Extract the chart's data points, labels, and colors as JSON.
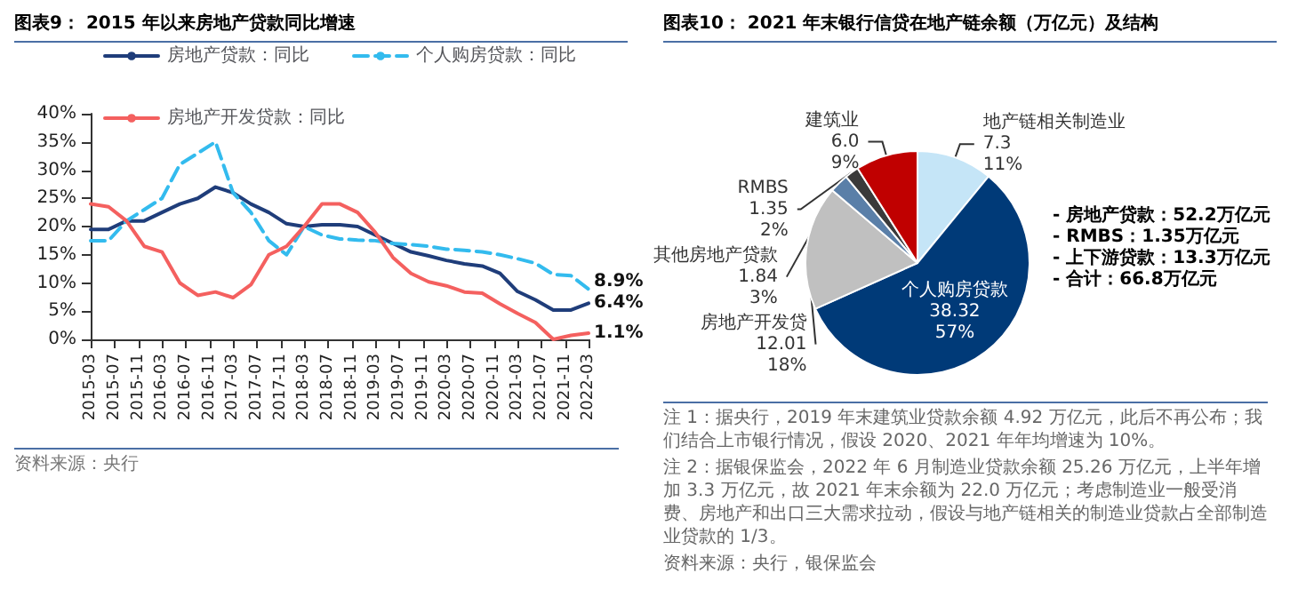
{
  "chart_data": [
    {
      "type": "line",
      "title": "图表9： 2015 年以来房地产贷款同比增速",
      "x": [
        "2015-03",
        "2015-06",
        "2015-09",
        "2015-12",
        "2016-03",
        "2016-06",
        "2016-09",
        "2016-12",
        "2017-03",
        "2017-06",
        "2017-09",
        "2017-12",
        "2018-03",
        "2018-06",
        "2018-09",
        "2018-12",
        "2019-03",
        "2019-06",
        "2019-09",
        "2019-12",
        "2020-03",
        "2020-06",
        "2020-09",
        "2020-12",
        "2021-03",
        "2021-06",
        "2021-09",
        "2021-12",
        "2022-03"
      ],
      "series": [
        {
          "name": "房地产贷款：同比",
          "color": "#1f3d7a",
          "values": [
            19.5,
            19.5,
            21,
            21,
            22.5,
            24,
            25,
            27,
            26,
            24,
            22.5,
            20.5,
            20,
            20.3,
            20.3,
            20,
            18.5,
            17,
            15.5,
            14.8,
            14,
            13.4,
            13,
            11.7,
            8.5,
            7,
            5.2,
            5.2,
            6.4
          ]
        },
        {
          "name": "个人购房贷款：同比",
          "color": "#33bbee",
          "line_style": "dashed",
          "values": [
            17.5,
            17.5,
            21,
            23,
            25,
            31,
            33,
            35,
            26,
            22.5,
            17.5,
            15,
            20,
            18.5,
            17.8,
            17.6,
            17.5,
            17,
            16.8,
            16.5,
            16,
            15.8,
            15.5,
            15,
            14.3,
            13.5,
            11.5,
            11.3,
            8.9
          ]
        },
        {
          "name": "房地产开发贷款：同比",
          "color": "#f4605f",
          "values": [
            24,
            23.5,
            21,
            16.5,
            15.5,
            10,
            7.8,
            8.4,
            7.4,
            9.7,
            15,
            16.5,
            20,
            24,
            24,
            22.5,
            19,
            14.5,
            11.7,
            10.2,
            9.5,
            8.4,
            8.2,
            6.3,
            4.6,
            3,
            0,
            0.7,
            1.1
          ]
        }
      ],
      "xlim": [
        "2015-03",
        "2022-03"
      ],
      "xticks": [
        "2015-03",
        "2015-07",
        "2015-11",
        "2016-03",
        "2016-07",
        "2016-11",
        "2017-03",
        "2017-07",
        "2017-11",
        "2018-03",
        "2018-07",
        "2018-11",
        "2019-03",
        "2019-07",
        "2019-11",
        "2020-03",
        "2020-07",
        "2020-11",
        "2021-03",
        "2021-07",
        "2021-11",
        "2022-03"
      ],
      "ylim": [
        0,
        40
      ],
      "yticks": [
        {
          "value": 0,
          "label": "0%"
        },
        {
          "value": 5,
          "label": "5%"
        },
        {
          "value": 10,
          "label": "10%"
        },
        {
          "value": 15,
          "label": "15%"
        },
        {
          "value": 20,
          "label": "20%"
        },
        {
          "value": 25,
          "label": "25%"
        },
        {
          "value": 30,
          "label": "30%"
        },
        {
          "value": 35,
          "label": "35%"
        },
        {
          "value": 40,
          "label": "40%"
        }
      ],
      "legend": "top left",
      "marker": "none",
      "line_style": "solid",
      "grid": false,
      "annotations": [
        {
          "text": "8.9%",
          "x": "2022-03",
          "y": 8.9
        },
        {
          "text": "6.4%",
          "x": "2022-03",
          "y": 6.4
        },
        {
          "text": "1.1%",
          "x": "2022-03",
          "y": 1.1
        },
        "资料来源：央行"
      ]
    },
    {
      "type": "pie",
      "title": "图表10： 2021 年末银行信贷在地产链余额（万亿元）及结构",
      "categories": [
        "地产链相关制造业",
        "个人购房贷款",
        "房地产开发贷",
        "其他房地产贷款",
        "RMBS",
        "建筑业"
      ],
      "values": [
        7.3,
        38.32,
        12.01,
        1.84,
        1.35,
        6.0
      ],
      "colors": [
        "#c5e5f7",
        "#003a78",
        "#c0c0c0",
        "#5a7fa8",
        "#3a3a3a",
        "#c00000"
      ],
      "value_labels": [
        "7.3\n11%",
        "38.32\n57%",
        "12.01\n18%",
        "1.84\n3%",
        "1.35\n2%",
        "6.0\n9%"
      ],
      "annotations": [
        "- 房地产贷款：52.2万亿元",
        "- RMBS：1.35万亿元",
        "- 上下游贷款：13.3万亿元",
        "- 合计：66.8万亿元",
        "注 1：据央行，2019 年末建筑业贷款余额 4.92 万亿元，此后不再公布；我们结合上市银行情况，假设 2020、2021 年年均增速为 10%。",
        "注 2：据银保监会，2022 年 6 月制造业贷款余额 25.26 万亿元，上半年增加 3.3 万亿元，故 2021 年末余额为 22.0 万亿元；考虑制造业一般受消费、房地产和出口三大需求拉动，假设与地产链相关的制造业贷款占全部制造业贷款的 1/3。",
        "资料来源：央行，银保监会"
      ]
    }
  ]
}
